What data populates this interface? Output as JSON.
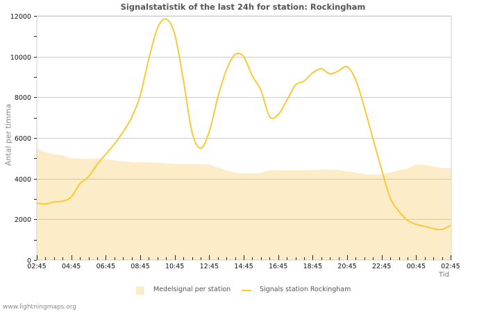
{
  "title": "Signalstatistik of the last 24h for station: Rockingham",
  "credit": "www.lightningmaps.org",
  "colors": {
    "average_fill": "#fdecc8",
    "signal_line": "#f9c935",
    "grid": "#cccccc",
    "grid_on_fill": "#d8c7a5"
  },
  "legend": {
    "average_label": "Medelsignal per station",
    "signal_label": "Signals station Rockingham"
  },
  "chart_data": {
    "type": "line",
    "title": "Signalstatistik of the last 24h for station: Rockingham",
    "xlabel": "Tid",
    "ylabel": "Antal per timma",
    "ylim": [
      0,
      12000
    ],
    "yticks": [
      0,
      2000,
      4000,
      6000,
      8000,
      10000,
      12000
    ],
    "xticks": [
      "02:45",
      "04:45",
      "06:45",
      "08:45",
      "10:45",
      "12:45",
      "14:45",
      "16:45",
      "18:45",
      "20:45",
      "22:45",
      "00:45",
      "02:45"
    ],
    "grid": true,
    "legend_position": "bottom",
    "x": [
      "02:45",
      "03:15",
      "03:45",
      "04:15",
      "04:45",
      "05:15",
      "05:45",
      "06:15",
      "06:45",
      "07:15",
      "07:45",
      "08:15",
      "08:45",
      "09:15",
      "09:45",
      "10:15",
      "10:45",
      "11:15",
      "11:45",
      "12:15",
      "12:45",
      "13:15",
      "13:45",
      "14:15",
      "14:45",
      "15:15",
      "15:45",
      "16:15",
      "16:45",
      "17:15",
      "17:45",
      "18:15",
      "18:45",
      "19:15",
      "19:45",
      "20:15",
      "20:45",
      "21:15",
      "21:45",
      "22:15",
      "22:45",
      "23:15",
      "23:45",
      "00:15",
      "00:45",
      "01:15",
      "01:45",
      "02:15",
      "02:45"
    ],
    "series": [
      {
        "name": "Medelsignal per station",
        "style": "area",
        "values": [
          5500,
          5300,
          5200,
          5150,
          5000,
          4980,
          4980,
          5000,
          4950,
          4900,
          4850,
          4820,
          4800,
          4800,
          4780,
          4750,
          4720,
          4720,
          4720,
          4720,
          4700,
          4550,
          4400,
          4300,
          4250,
          4250,
          4300,
          4400,
          4400,
          4400,
          4400,
          4420,
          4420,
          4450,
          4450,
          4420,
          4350,
          4300,
          4220,
          4200,
          4220,
          4300,
          4400,
          4500,
          4700,
          4680,
          4600,
          4520,
          4520
        ]
      },
      {
        "name": "Signals station Rockingham",
        "style": "line",
        "values": [
          2800,
          2750,
          2850,
          2900,
          3100,
          3750,
          4100,
          4700,
          5200,
          5700,
          6300,
          7000,
          8100,
          9900,
          11400,
          11850,
          11100,
          8850,
          6300,
          5500,
          6300,
          8000,
          9350,
          10100,
          10000,
          9050,
          8350,
          7050,
          7150,
          7850,
          8600,
          8800,
          9200,
          9400,
          9150,
          9300,
          9500,
          8850,
          7500,
          5950,
          4450,
          3050,
          2400,
          1950,
          1750,
          1650,
          1550,
          1500,
          1700
        ]
      }
    ]
  }
}
